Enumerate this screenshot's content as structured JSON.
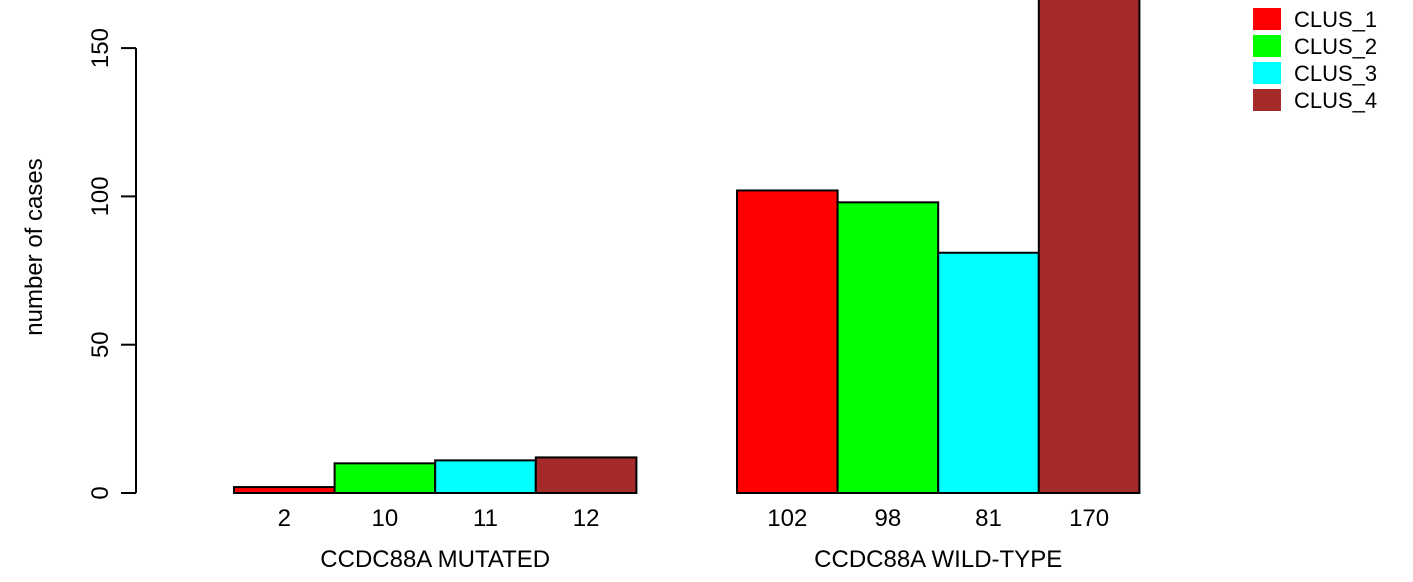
{
  "chart_data": {
    "type": "bar",
    "ylabel": "number of cases",
    "ylim": [
      0,
      170
    ],
    "yticks": [
      0,
      50,
      100,
      150
    ],
    "grid": false,
    "legend_placement": "top-right",
    "groups": [
      {
        "label": "CCDC88A MUTATED",
        "values": [
          2,
          10,
          11,
          12
        ],
        "value_labels": [
          "2",
          "10",
          "11",
          "12"
        ]
      },
      {
        "label": "CCDC88A WILD-TYPE",
        "values": [
          102,
          98,
          81,
          170
        ],
        "value_labels": [
          "102",
          "98",
          "81",
          "170"
        ]
      }
    ],
    "series": [
      {
        "name": "CLUS_1",
        "color": "#ff0000"
      },
      {
        "name": "CLUS_2",
        "color": "#00ff00"
      },
      {
        "name": "CLUS_3",
        "color": "#00ffff"
      },
      {
        "name": "CLUS_4",
        "color": "#a52a2a"
      }
    ]
  }
}
